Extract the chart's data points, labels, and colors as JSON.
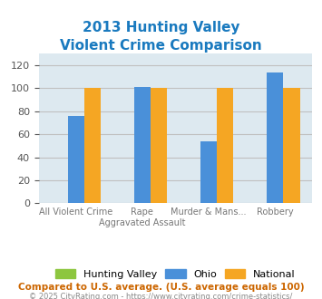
{
  "title_line1": "2013 Hunting Valley",
  "title_line2": "Violent Crime Comparison",
  "title_color": "#1a7abf",
  "categories": [
    "All Violent Crime",
    "Rape\nAggravated Assault",
    "Murder & Mans...",
    "Robbery"
  ],
  "tick_labels_row1": [
    "",
    "Rape",
    "Murder & Mans...",
    ""
  ],
  "tick_labels_row2": [
    "All Violent Crime",
    "Aggravated Assault",
    "",
    "Robbery"
  ],
  "hunting_valley": [
    0,
    0,
    0,
    0
  ],
  "ohio": [
    76,
    101,
    54,
    114
  ],
  "national": [
    100,
    100,
    100,
    100
  ],
  "hv_color": "#8dc63f",
  "ohio_color": "#4a90d9",
  "national_color": "#f5a623",
  "ylim": [
    0,
    130
  ],
  "yticks": [
    0,
    20,
    40,
    60,
    80,
    100,
    120
  ],
  "grid_color": "#c0c0c0",
  "bg_color": "#dde9f0",
  "footnote1": "Compared to U.S. average. (U.S. average equals 100)",
  "footnote2": "© 2025 CityRating.com - https://www.cityrating.com/crime-statistics/",
  "footnote1_color": "#cc6600",
  "footnote2_color": "#888888",
  "bar_width": 0.25
}
